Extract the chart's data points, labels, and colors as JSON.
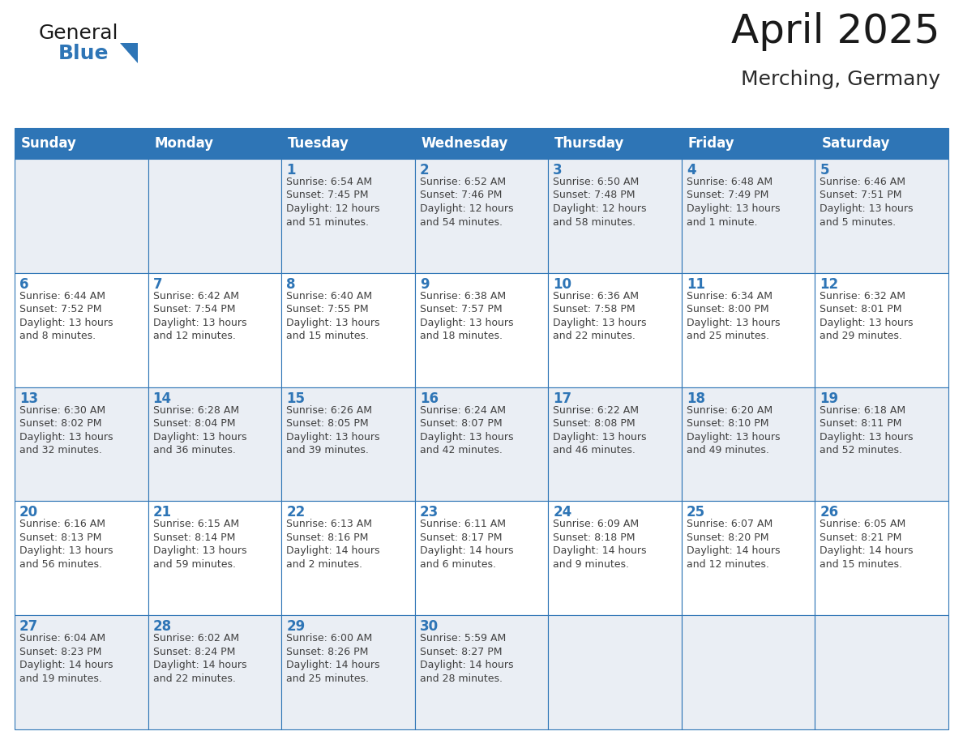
{
  "title": "April 2025",
  "subtitle": "Merching, Germany",
  "header_color": "#2E75B6",
  "header_text_color": "#FFFFFF",
  "cell_bg_color": "#FFFFFF",
  "border_color": "#2E75B6",
  "day_number_color": "#2E75B6",
  "cell_text_color": "#404040",
  "alt_row_color": "#EAEEF4",
  "days_of_week": [
    "Sunday",
    "Monday",
    "Tuesday",
    "Wednesday",
    "Thursday",
    "Friday",
    "Saturday"
  ],
  "calendar_data": [
    [
      {
        "day": "",
        "text": ""
      },
      {
        "day": "",
        "text": ""
      },
      {
        "day": "1",
        "text": "Sunrise: 6:54 AM\nSunset: 7:45 PM\nDaylight: 12 hours\nand 51 minutes."
      },
      {
        "day": "2",
        "text": "Sunrise: 6:52 AM\nSunset: 7:46 PM\nDaylight: 12 hours\nand 54 minutes."
      },
      {
        "day": "3",
        "text": "Sunrise: 6:50 AM\nSunset: 7:48 PM\nDaylight: 12 hours\nand 58 minutes."
      },
      {
        "day": "4",
        "text": "Sunrise: 6:48 AM\nSunset: 7:49 PM\nDaylight: 13 hours\nand 1 minute."
      },
      {
        "day": "5",
        "text": "Sunrise: 6:46 AM\nSunset: 7:51 PM\nDaylight: 13 hours\nand 5 minutes."
      }
    ],
    [
      {
        "day": "6",
        "text": "Sunrise: 6:44 AM\nSunset: 7:52 PM\nDaylight: 13 hours\nand 8 minutes."
      },
      {
        "day": "7",
        "text": "Sunrise: 6:42 AM\nSunset: 7:54 PM\nDaylight: 13 hours\nand 12 minutes."
      },
      {
        "day": "8",
        "text": "Sunrise: 6:40 AM\nSunset: 7:55 PM\nDaylight: 13 hours\nand 15 minutes."
      },
      {
        "day": "9",
        "text": "Sunrise: 6:38 AM\nSunset: 7:57 PM\nDaylight: 13 hours\nand 18 minutes."
      },
      {
        "day": "10",
        "text": "Sunrise: 6:36 AM\nSunset: 7:58 PM\nDaylight: 13 hours\nand 22 minutes."
      },
      {
        "day": "11",
        "text": "Sunrise: 6:34 AM\nSunset: 8:00 PM\nDaylight: 13 hours\nand 25 minutes."
      },
      {
        "day": "12",
        "text": "Sunrise: 6:32 AM\nSunset: 8:01 PM\nDaylight: 13 hours\nand 29 minutes."
      }
    ],
    [
      {
        "day": "13",
        "text": "Sunrise: 6:30 AM\nSunset: 8:02 PM\nDaylight: 13 hours\nand 32 minutes."
      },
      {
        "day": "14",
        "text": "Sunrise: 6:28 AM\nSunset: 8:04 PM\nDaylight: 13 hours\nand 36 minutes."
      },
      {
        "day": "15",
        "text": "Sunrise: 6:26 AM\nSunset: 8:05 PM\nDaylight: 13 hours\nand 39 minutes."
      },
      {
        "day": "16",
        "text": "Sunrise: 6:24 AM\nSunset: 8:07 PM\nDaylight: 13 hours\nand 42 minutes."
      },
      {
        "day": "17",
        "text": "Sunrise: 6:22 AM\nSunset: 8:08 PM\nDaylight: 13 hours\nand 46 minutes."
      },
      {
        "day": "18",
        "text": "Sunrise: 6:20 AM\nSunset: 8:10 PM\nDaylight: 13 hours\nand 49 minutes."
      },
      {
        "day": "19",
        "text": "Sunrise: 6:18 AM\nSunset: 8:11 PM\nDaylight: 13 hours\nand 52 minutes."
      }
    ],
    [
      {
        "day": "20",
        "text": "Sunrise: 6:16 AM\nSunset: 8:13 PM\nDaylight: 13 hours\nand 56 minutes."
      },
      {
        "day": "21",
        "text": "Sunrise: 6:15 AM\nSunset: 8:14 PM\nDaylight: 13 hours\nand 59 minutes."
      },
      {
        "day": "22",
        "text": "Sunrise: 6:13 AM\nSunset: 8:16 PM\nDaylight: 14 hours\nand 2 minutes."
      },
      {
        "day": "23",
        "text": "Sunrise: 6:11 AM\nSunset: 8:17 PM\nDaylight: 14 hours\nand 6 minutes."
      },
      {
        "day": "24",
        "text": "Sunrise: 6:09 AM\nSunset: 8:18 PM\nDaylight: 14 hours\nand 9 minutes."
      },
      {
        "day": "25",
        "text": "Sunrise: 6:07 AM\nSunset: 8:20 PM\nDaylight: 14 hours\nand 12 minutes."
      },
      {
        "day": "26",
        "text": "Sunrise: 6:05 AM\nSunset: 8:21 PM\nDaylight: 14 hours\nand 15 minutes."
      }
    ],
    [
      {
        "day": "27",
        "text": "Sunrise: 6:04 AM\nSunset: 8:23 PM\nDaylight: 14 hours\nand 19 minutes."
      },
      {
        "day": "28",
        "text": "Sunrise: 6:02 AM\nSunset: 8:24 PM\nDaylight: 14 hours\nand 22 minutes."
      },
      {
        "day": "29",
        "text": "Sunrise: 6:00 AM\nSunset: 8:26 PM\nDaylight: 14 hours\nand 25 minutes."
      },
      {
        "day": "30",
        "text": "Sunrise: 5:59 AM\nSunset: 8:27 PM\nDaylight: 14 hours\nand 28 minutes."
      },
      {
        "day": "",
        "text": ""
      },
      {
        "day": "",
        "text": ""
      },
      {
        "day": "",
        "text": ""
      }
    ]
  ],
  "logo_triangle_color": "#2E75B6",
  "title_fontsize": 36,
  "subtitle_fontsize": 18,
  "header_fontsize": 12,
  "day_num_fontsize": 12,
  "cell_text_fontsize": 9
}
